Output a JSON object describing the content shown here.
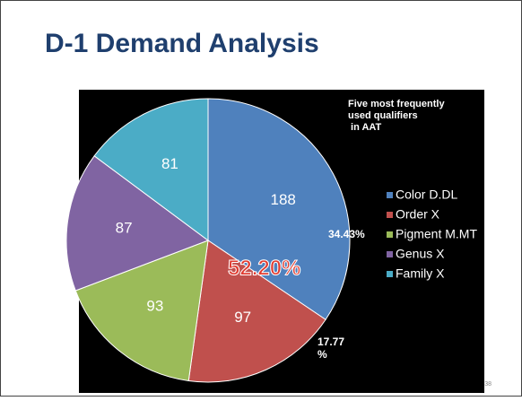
{
  "title": "D-1 Demand Analysis",
  "slide_number": "38",
  "chart_data": {
    "type": "pie",
    "title_lines": [
      "Five most frequently",
      "used qualifiers",
      " in AAT"
    ],
    "categories": [
      "Color D.DL",
      "Order X",
      "Pigment M.MT",
      "Genus X",
      "Family X"
    ],
    "values": [
      188,
      97,
      93,
      87,
      81
    ],
    "colors": [
      "#4f81bd",
      "#c0504d",
      "#9bbb59",
      "#8064a2",
      "#4bacc6"
    ],
    "legend": "right",
    "annotations": [
      "34.43%",
      "17.77",
      "%",
      "52.20%"
    ]
  }
}
